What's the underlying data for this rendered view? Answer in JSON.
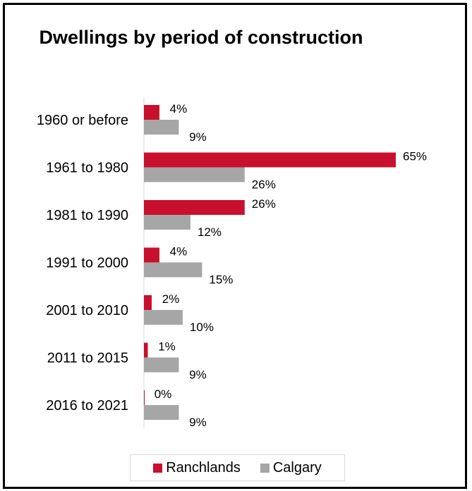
{
  "colors": {
    "ranchlands": "#c8102e",
    "calgary": "#a6a6a6",
    "axis": "#d9d9d9"
  },
  "chart_data": {
    "type": "bar",
    "orientation": "horizontal",
    "title": "Dwellings by period of construction",
    "categories": [
      "1960 or before",
      "1961 to 1980",
      "1981 to 1990",
      "1991 to 2000",
      "2001 to 2010",
      "2011 to 2015",
      "2016 to 2021"
    ],
    "series": [
      {
        "name": "Ranchlands",
        "values": [
          4,
          65,
          26,
          4,
          2,
          1,
          0
        ],
        "labels": [
          "4%",
          "65%",
          "26%",
          "4%",
          "2%",
          "1%",
          "0%"
        ]
      },
      {
        "name": "Calgary",
        "values": [
          9,
          26,
          12,
          15,
          10,
          9,
          9
        ],
        "labels": [
          "9%",
          "26%",
          "12%",
          "15%",
          "10%",
          "9%",
          "9%"
        ]
      }
    ],
    "xlim": [
      0,
      65
    ],
    "legend": "bottom",
    "grid": false
  }
}
